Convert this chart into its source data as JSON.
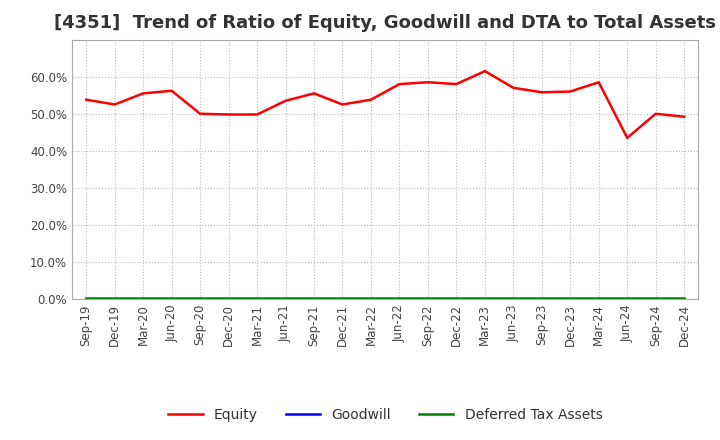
{
  "title": "[4351]  Trend of Ratio of Equity, Goodwill and DTA to Total Assets",
  "x_labels": [
    "Sep-19",
    "Dec-19",
    "Mar-20",
    "Jun-20",
    "Sep-20",
    "Dec-20",
    "Mar-21",
    "Jun-21",
    "Sep-21",
    "Dec-21",
    "Mar-22",
    "Jun-22",
    "Sep-22",
    "Dec-22",
    "Mar-23",
    "Jun-23",
    "Sep-23",
    "Dec-23",
    "Mar-24",
    "Jun-24",
    "Sep-24",
    "Dec-24"
  ],
  "equity": [
    53.8,
    52.5,
    55.5,
    56.2,
    50.0,
    49.8,
    49.8,
    53.5,
    55.5,
    52.5,
    53.8,
    58.0,
    58.5,
    58.0,
    61.5,
    57.0,
    55.8,
    56.0,
    58.5,
    43.5,
    50.0,
    49.2
  ],
  "goodwill": [
    0.0,
    0.0,
    0.0,
    0.0,
    0.0,
    0.0,
    0.0,
    0.0,
    0.0,
    0.0,
    0.0,
    0.0,
    0.0,
    0.0,
    0.0,
    0.0,
    0.0,
    0.0,
    0.0,
    0.0,
    0.0,
    0.0
  ],
  "dta": [
    0.3,
    0.3,
    0.3,
    0.3,
    0.3,
    0.3,
    0.3,
    0.3,
    0.3,
    0.3,
    0.3,
    0.3,
    0.3,
    0.3,
    0.3,
    0.3,
    0.3,
    0.3,
    0.3,
    0.3,
    0.3,
    0.3
  ],
  "equity_color": "#ff0000",
  "goodwill_color": "#0000ff",
  "dta_color": "#008000",
  "background_color": "#ffffff",
  "plot_bg_color": "#ffffff",
  "grid_color": "#bbbbbb",
  "ylim": [
    0,
    70
  ],
  "yticks": [
    0,
    10,
    20,
    30,
    40,
    50,
    60
  ],
  "legend_labels": [
    "Equity",
    "Goodwill",
    "Deferred Tax Assets"
  ],
  "title_fontsize": 13,
  "tick_fontsize": 8.5,
  "legend_fontsize": 10
}
